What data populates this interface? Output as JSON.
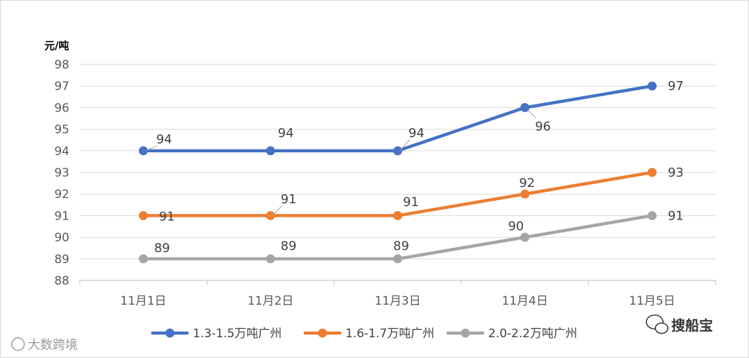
{
  "chart_data": {
    "type": "line",
    "ylabel": "元/吨",
    "ylim": [
      88,
      98
    ],
    "yticks": [
      88,
      89,
      90,
      91,
      92,
      93,
      94,
      95,
      96,
      97,
      98
    ],
    "categories": [
      "11月1日",
      "11月2日",
      "11月3日",
      "11月4日",
      "11月5日"
    ],
    "grid": true,
    "legend": "bottom",
    "series": [
      {
        "name": "1.3-1.5万吨广州",
        "color": "#4472C4",
        "values": [
          94,
          94,
          94,
          96,
          97
        ]
      },
      {
        "name": "1.6-1.7万吨广州",
        "color": "#ED7D31",
        "values": [
          91,
          91,
          91,
          92,
          93
        ]
      },
      {
        "name": "2.0-2.2万吨广州",
        "color": "#A5A5A5",
        "values": [
          89,
          89,
          89,
          90,
          91
        ]
      }
    ]
  },
  "watermarks": {
    "left": "大数跨境",
    "right": "搜船宝"
  }
}
